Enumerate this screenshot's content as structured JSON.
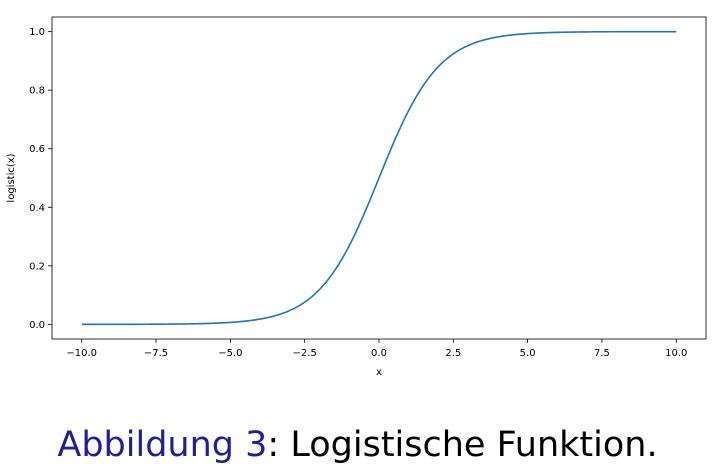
{
  "chart_data": {
    "type": "line",
    "function": "logistic",
    "title": "",
    "xlabel": "x",
    "ylabel": "logistic(x)",
    "xlim": [
      -11.0,
      11.0
    ],
    "ylim": [
      -0.05,
      1.05
    ],
    "x_range": [
      -10.0,
      10.0
    ],
    "xticks": [
      -10.0,
      -7.5,
      -5.0,
      -2.5,
      0.0,
      2.5,
      5.0,
      7.5,
      10.0
    ],
    "xtick_labels": [
      "−10.0",
      "−7.5",
      "−5.0",
      "−2.5",
      "0.0",
      "2.5",
      "5.0",
      "7.5",
      "10.0"
    ],
    "yticks": [
      0.0,
      0.2,
      0.4,
      0.6,
      0.8,
      1.0
    ],
    "ytick_labels": [
      "0.0",
      "0.2",
      "0.4",
      "0.6",
      "0.8",
      "1.0"
    ],
    "series": [
      {
        "color": "#1f77b4",
        "x": [
          -10.0,
          -7.5,
          -5.0,
          -4.0,
          -3.0,
          -2.5,
          -2.0,
          -1.5,
          -1.0,
          -0.5,
          0.0,
          0.5,
          1.0,
          1.5,
          2.0,
          2.5,
          3.0,
          4.0,
          5.0,
          7.5,
          10.0
        ],
        "y": [
          0.0,
          0.0006,
          0.0067,
          0.018,
          0.0474,
          0.0759,
          0.1192,
          0.1824,
          0.2689,
          0.3775,
          0.5,
          0.6225,
          0.7311,
          0.8176,
          0.8808,
          0.9241,
          0.9526,
          0.982,
          0.9933,
          0.9994,
          1.0
        ]
      }
    ],
    "grid": false,
    "legend": "none"
  },
  "caption": {
    "label": "Abbildung 3",
    "separator": ":",
    "text": " Logistische Funktion."
  },
  "colors": {
    "caption_label": "#1f1f9e",
    "line": "#1f77b4"
  }
}
